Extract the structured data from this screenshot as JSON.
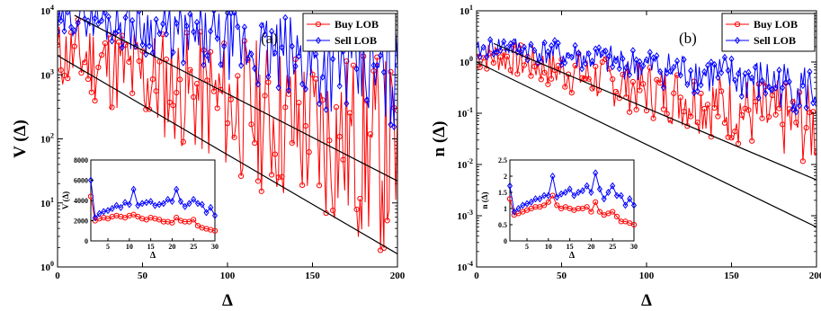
{
  "chart_data": [
    {
      "type": "line",
      "panel_tag": "(a)",
      "ylabel_var": "V",
      "ylabel": "V (Δ)",
      "xlabel": "Δ",
      "yscale": "log",
      "xlim": [
        0,
        200
      ],
      "ylim": [
        1,
        10000
      ],
      "x_ticks": [
        "0",
        "50",
        "100",
        "150",
        "200"
      ],
      "y_ticks": [
        {
          "base": "10",
          "exp": "0"
        },
        {
          "base": "10",
          "exp": "1"
        },
        {
          "base": "10",
          "exp": "2"
        },
        {
          "base": "10",
          "exp": "3"
        },
        {
          "base": "10",
          "exp": "4"
        }
      ],
      "legend": {
        "position": "top-right"
      },
      "series": [
        {
          "name": "Buy LOB",
          "color": "#ff0000",
          "marker": "circle",
          "y0": 2000,
          "decay": 0.02,
          "peak": 1.0,
          "noise": 1.1,
          "seed": 11
        },
        {
          "name": "Sell LOB",
          "color": "#0000ff",
          "marker": "diamond",
          "y0": 5500,
          "decay": 0.0125,
          "peak": 1.6,
          "noise": 0.55,
          "seed": 29
        }
      ],
      "fits": [
        {
          "x": [
            0,
            200
          ],
          "y": [
            2000,
            1.6
          ]
        },
        {
          "x": [
            10,
            200
          ],
          "y": [
            8500,
            22
          ]
        }
      ],
      "inset": {
        "xlabel": "Δ",
        "ylabel_var": "V",
        "ylabel": "V (Δ)",
        "xlim": [
          1,
          30
        ],
        "ylim": [
          0,
          8000
        ],
        "x_ticks": [
          "5",
          "10",
          "15",
          "20",
          "25",
          "30"
        ],
        "y_ticks": [
          "0",
          "2000",
          "4000",
          "6000",
          "8000"
        ],
        "series": [
          {
            "name": "Buy LOB",
            "x": [
              1,
              2,
              3,
              4,
              5,
              6,
              7,
              8,
              9,
              10,
              11,
              12,
              13,
              14,
              15,
              16,
              17,
              18,
              19,
              20,
              21,
              22,
              23,
              24,
              25,
              26,
              27,
              28,
              29,
              30
            ],
            "y": [
              4400,
              2000,
              2200,
              2300,
              2200,
              2400,
              2500,
              2400,
              2300,
              2500,
              2600,
              2400,
              2200,
              2100,
              2300,
              2200,
              2100,
              1900,
              1900,
              1800,
              2300,
              2000,
              1900,
              1900,
              2100,
              1500,
              1300,
              1200,
              1100,
              1000
            ]
          },
          {
            "name": "Sell LOB",
            "x": [
              1,
              2,
              3,
              4,
              5,
              6,
              7,
              8,
              9,
              10,
              11,
              12,
              13,
              14,
              15,
              16,
              17,
              18,
              19,
              20,
              21,
              22,
              23,
              24,
              25,
              26,
              27,
              28,
              29,
              30
            ],
            "y": [
              6000,
              2300,
              2700,
              2900,
              3000,
              3200,
              3500,
              3300,
              3800,
              3600,
              5100,
              3500,
              3700,
              3800,
              3900,
              3500,
              3600,
              3700,
              4100,
              3900,
              5100,
              3900,
              3400,
              3700,
              4100,
              3700,
              3600,
              2800,
              3300,
              2500
            ]
          }
        ]
      }
    },
    {
      "type": "line",
      "panel_tag": "(b)",
      "ylabel_var": "n",
      "ylabel": "n (Δ)",
      "xlabel": "Δ",
      "yscale": "log",
      "xlim": [
        0,
        200
      ],
      "ylim": [
        0.0001,
        10
      ],
      "x_ticks": [
        "0",
        "50",
        "100",
        "150",
        "200"
      ],
      "y_ticks": [
        {
          "base": "10",
          "exp": "-4"
        },
        {
          "base": "10",
          "exp": "-3"
        },
        {
          "base": "10",
          "exp": "-2"
        },
        {
          "base": "10",
          "exp": "-1"
        },
        {
          "base": "10",
          "exp": "0"
        },
        {
          "base": "10",
          "exp": "1"
        }
      ],
      "legend": {
        "position": "top-right"
      },
      "series": [
        {
          "name": "Buy LOB",
          "color": "#ff0000",
          "marker": "circle",
          "y0": 1.3,
          "decay": 0.017,
          "peak": 1.0,
          "noise": 0.55,
          "seed": 7
        },
        {
          "name": "Sell LOB",
          "color": "#0000ff",
          "marker": "diamond",
          "y0": 1.6,
          "decay": 0.0105,
          "peak": 1.3,
          "noise": 0.35,
          "seed": 41
        }
      ],
      "fits": [
        {
          "x": [
            0,
            200
          ],
          "y": [
            1.0,
            0.0006
          ]
        },
        {
          "x": [
            10,
            200
          ],
          "y": [
            2.3,
            0.005
          ]
        }
      ],
      "inset": {
        "xlabel": "Δ",
        "ylabel_var": "n",
        "ylabel": "n (Δ)",
        "xlim": [
          1,
          30
        ],
        "ylim": [
          0,
          2.5
        ],
        "x_ticks": [
          "5",
          "10",
          "15",
          "20",
          "25",
          "30"
        ],
        "y_ticks": [
          "0",
          "0.5",
          "1",
          "1.5",
          "2",
          "2.5"
        ],
        "series": [
          {
            "name": "Buy LOB",
            "x": [
              1,
              2,
              3,
              4,
              5,
              6,
              7,
              8,
              9,
              10,
              11,
              12,
              13,
              14,
              15,
              16,
              17,
              18,
              19,
              20,
              21,
              22,
              23,
              24,
              25,
              26,
              27,
              28,
              29,
              30
            ],
            "y": [
              1.3,
              0.8,
              0.85,
              0.9,
              0.95,
              1.0,
              1.05,
              1.05,
              1.1,
              1.2,
              1.4,
              1.1,
              1.0,
              1.05,
              1.0,
              0.95,
              1.0,
              1.0,
              1.05,
              0.9,
              1.2,
              0.9,
              0.8,
              0.85,
              0.9,
              0.75,
              0.6,
              0.6,
              0.55,
              0.5
            ]
          },
          {
            "name": "Sell LOB",
            "x": [
              1,
              2,
              3,
              4,
              5,
              6,
              7,
              8,
              9,
              10,
              11,
              12,
              13,
              14,
              15,
              16,
              17,
              18,
              19,
              20,
              21,
              22,
              23,
              24,
              25,
              26,
              27,
              28,
              29,
              30
            ],
            "y": [
              1.7,
              0.9,
              1.0,
              1.1,
              1.15,
              1.2,
              1.3,
              1.3,
              1.4,
              1.4,
              2.0,
              1.35,
              1.45,
              1.5,
              1.6,
              1.4,
              1.5,
              1.55,
              1.7,
              1.5,
              2.1,
              1.6,
              1.3,
              1.5,
              1.7,
              1.4,
              1.4,
              1.1,
              1.3,
              1.1
            ]
          }
        ]
      }
    }
  ]
}
